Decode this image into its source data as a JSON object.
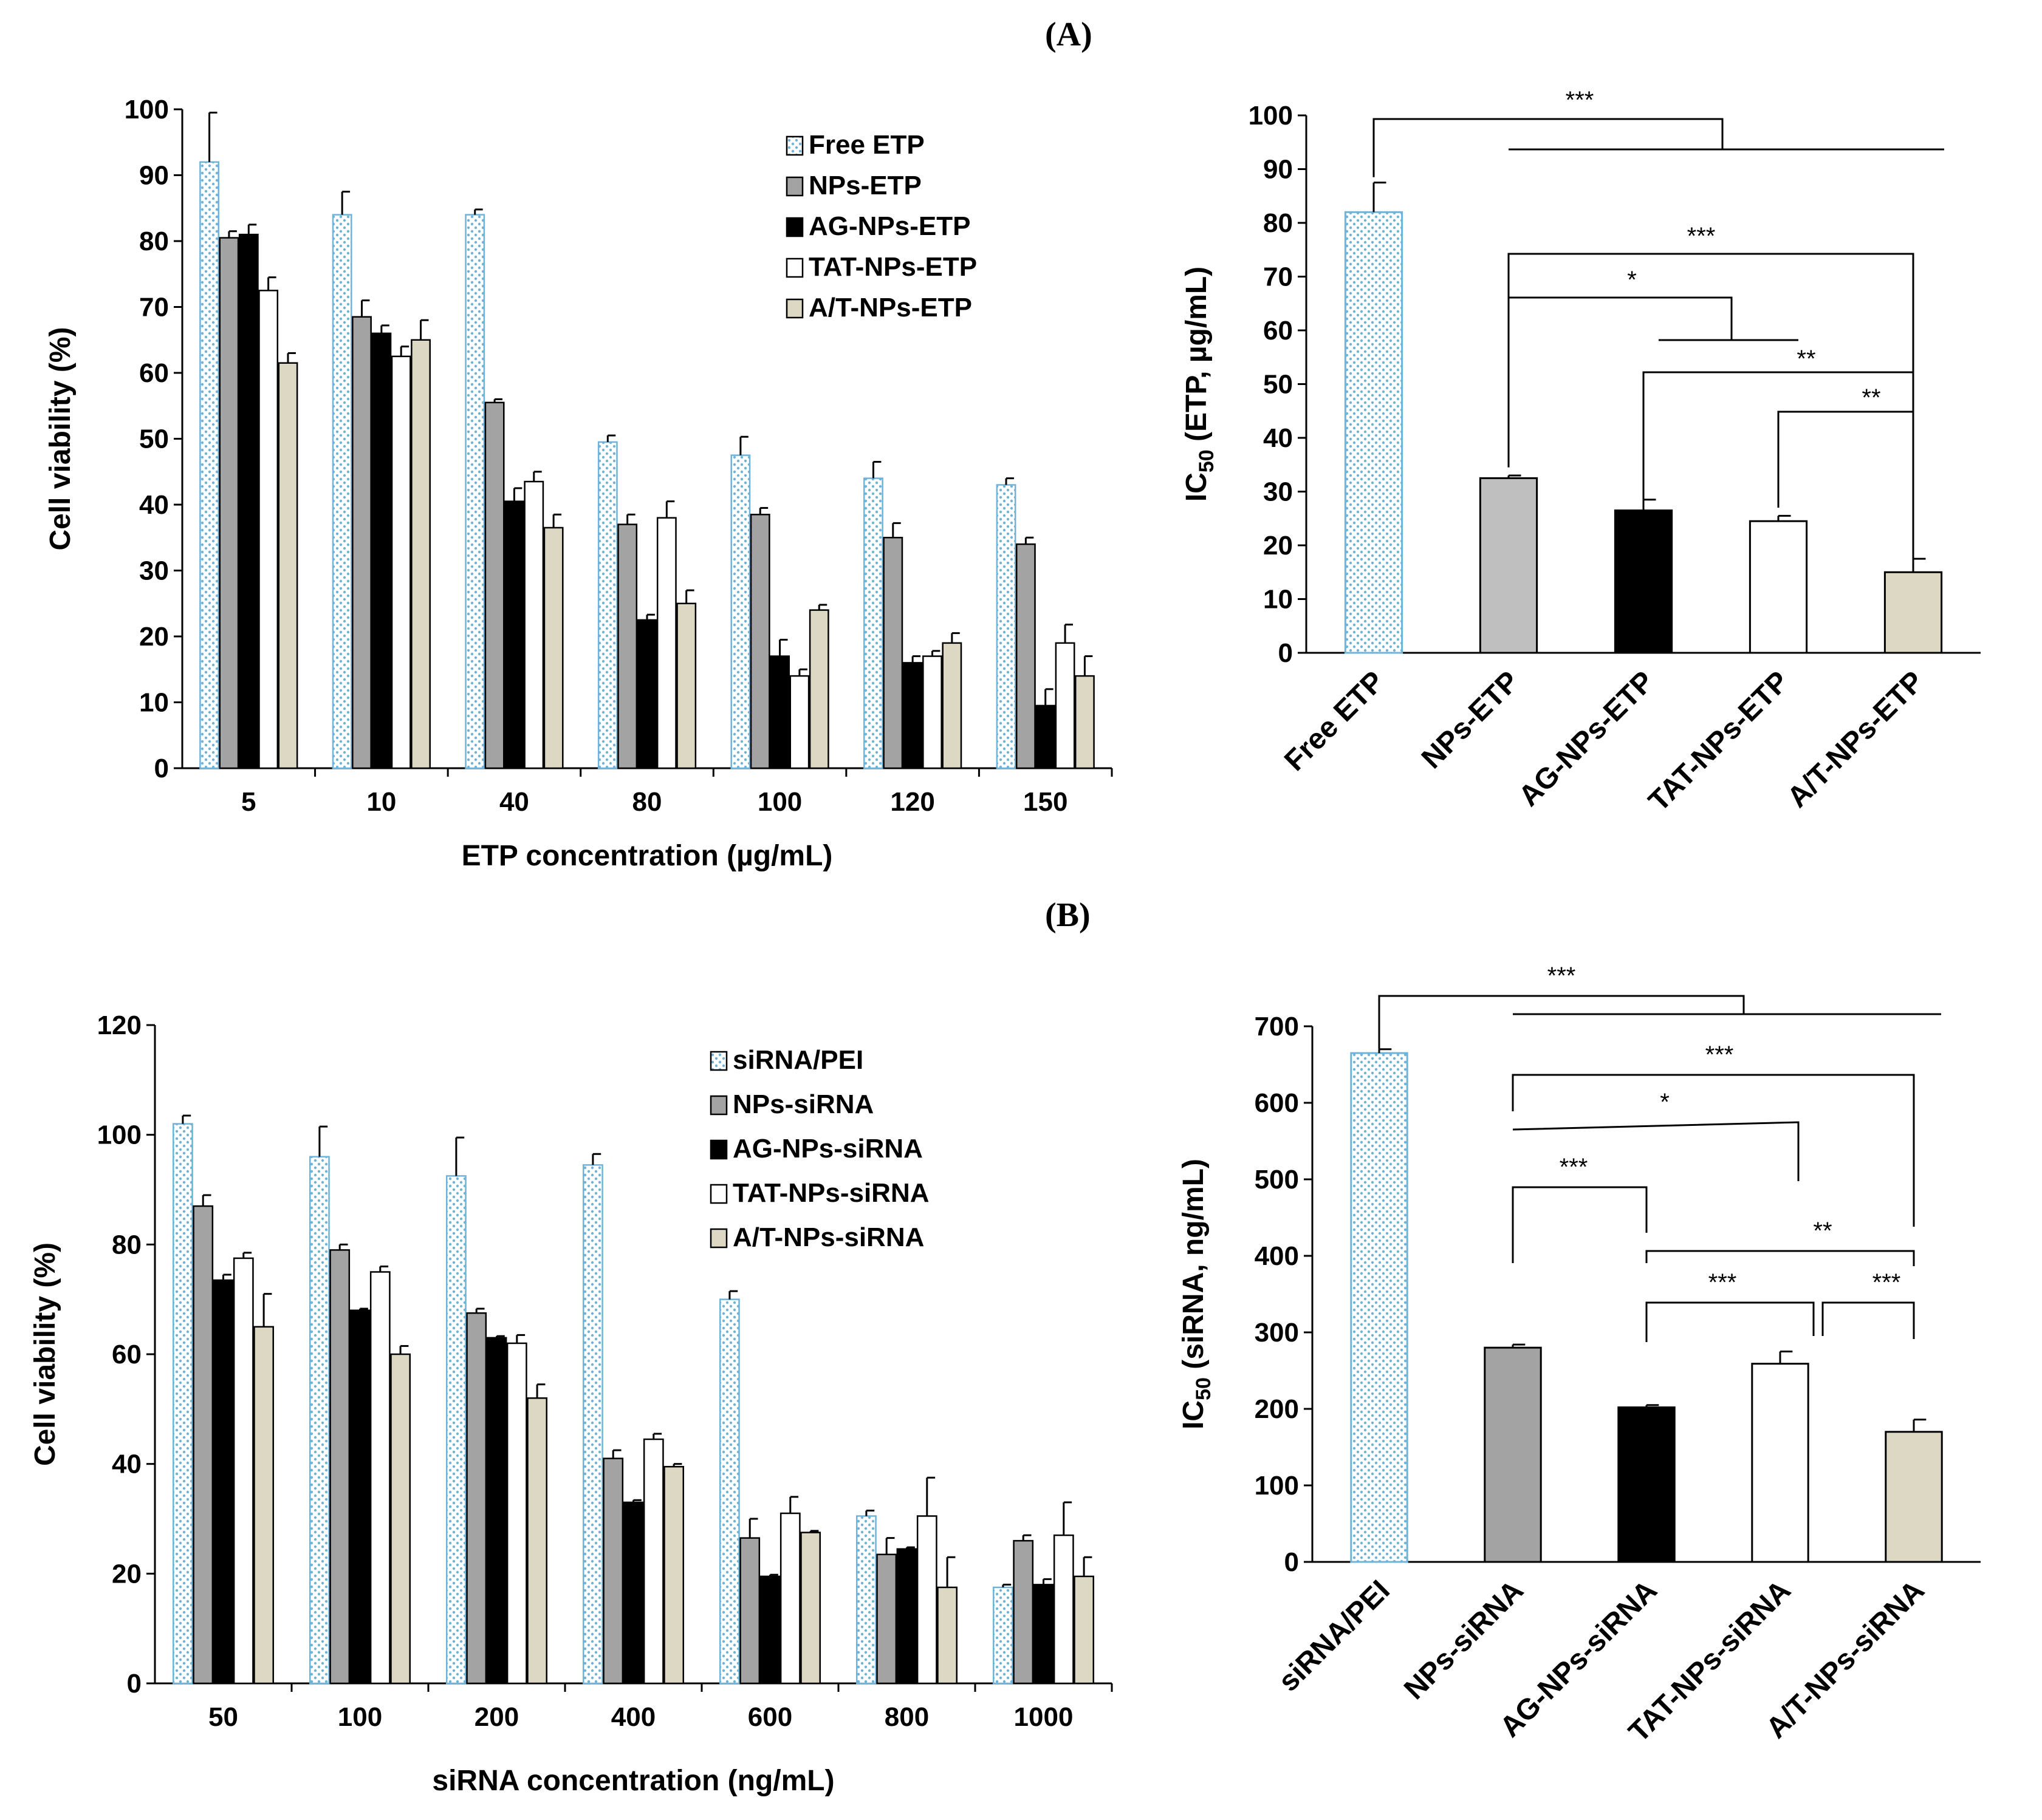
{
  "figure": {
    "label_a": "(A)",
    "label_b": "(B)"
  },
  "colors": {
    "free_fill": "#ffffff",
    "free_dot": "#6fb3d9",
    "gray": "#a3a3a3",
    "gray_light": "#bfbfbf",
    "black": "#000000",
    "white": "#ffffff",
    "beige": "#ddd8c4",
    "axis": "#000000"
  },
  "chart_data": [
    {
      "id": "A_viability",
      "type": "bar",
      "title": "",
      "xlabel": "ETP concentration (µg/mL)",
      "ylabel": "Cell viability (%)",
      "ylim": [
        0,
        100
      ],
      "yticks": [
        0,
        10,
        20,
        30,
        40,
        50,
        60,
        70,
        80,
        90,
        100
      ],
      "categories": [
        "5",
        "10",
        "40",
        "80",
        "100",
        "120",
        "150"
      ],
      "legend_position": "top-right",
      "series": [
        {
          "name": "Free ETP",
          "style": "dotted",
          "values": [
            92,
            84,
            84,
            49.5,
            47.5,
            44,
            43
          ],
          "errors": [
            7.5,
            3.5,
            0.8,
            1,
            2.8,
            2.5,
            1
          ]
        },
        {
          "name": "NPs-ETP",
          "style": "gray",
          "values": [
            80.5,
            68.5,
            55.5,
            37,
            38.5,
            35,
            34
          ],
          "errors": [
            1,
            2.5,
            0.5,
            1.5,
            1,
            2.2,
            1
          ]
        },
        {
          "name": "AG-NPs-ETP",
          "style": "black",
          "values": [
            81,
            66,
            40.5,
            22.5,
            17,
            16,
            9.5
          ],
          "errors": [
            1.5,
            1.2,
            2,
            0.8,
            2.5,
            1,
            2.5
          ]
        },
        {
          "name": "TAT-NPs-ETP",
          "style": "white",
          "values": [
            72.5,
            62.5,
            43.5,
            38,
            14,
            17,
            19
          ],
          "errors": [
            2,
            1.5,
            1.5,
            2.5,
            1,
            0.8,
            2.8
          ]
        },
        {
          "name": "A/T-NPs-ETP",
          "style": "beige",
          "values": [
            61.5,
            65,
            36.5,
            25,
            24,
            19,
            14
          ],
          "errors": [
            1.5,
            3,
            2,
            2,
            0.8,
            1.5,
            3
          ]
        }
      ]
    },
    {
      "id": "A_ic50",
      "type": "bar",
      "title": "",
      "xlabel": "",
      "ylabel_main": "IC",
      "ylabel_sub": "50",
      "ylabel_rest": " (ETP, µg/mL)",
      "ylim": [
        0,
        100
      ],
      "yticks": [
        0,
        10,
        20,
        30,
        40,
        50,
        60,
        70,
        80,
        90,
        100
      ],
      "categories": [
        "Free ETP",
        "NPs-ETP",
        "AG-NPs-ETP",
        "TAT-NPs-ETP",
        "A/T-NPs-ETP"
      ],
      "styles": [
        "dotted",
        "gray_light",
        "black",
        "white",
        "beige"
      ],
      "values": [
        82,
        32.5,
        26.5,
        24.5,
        15
      ],
      "errors": [
        5.5,
        0.5,
        2,
        1,
        2.5
      ],
      "annotations": [
        "***",
        "***",
        "*",
        "**",
        "**"
      ]
    },
    {
      "id": "B_viability",
      "type": "bar",
      "title": "",
      "xlabel": "siRNA concentration (ng/mL)",
      "ylabel": "Cell viability (%)",
      "ylim": [
        0,
        120
      ],
      "yticks": [
        0,
        20,
        40,
        60,
        80,
        100,
        120
      ],
      "categories": [
        "50",
        "100",
        "200",
        "400",
        "600",
        "800",
        "1000"
      ],
      "legend_position": "top-right",
      "series": [
        {
          "name": "siRNA/PEI",
          "style": "dotted",
          "values": [
            102,
            96,
            92.5,
            94.5,
            70,
            30.5,
            17.5
          ],
          "errors": [
            1.5,
            5.5,
            7,
            2,
            1.5,
            1,
            0.5
          ]
        },
        {
          "name": "NPs-siRNA",
          "style": "gray",
          "values": [
            87,
            79,
            67.5,
            41,
            26.5,
            23.5,
            26
          ],
          "errors": [
            2,
            1,
            0.8,
            1.5,
            3.5,
            3,
            1
          ]
        },
        {
          "name": "AG-NPs-siRNA",
          "style": "black",
          "values": [
            73.5,
            68,
            63,
            33,
            19.5,
            24.5,
            18
          ],
          "errors": [
            1,
            0.3,
            0.3,
            0.4,
            0.3,
            0.3,
            1
          ]
        },
        {
          "name": "TAT-NPs-siRNA",
          "style": "white",
          "values": [
            77.5,
            75,
            62,
            44.5,
            31,
            30.5,
            27
          ],
          "errors": [
            1,
            1,
            1.5,
            1,
            3,
            7,
            6
          ]
        },
        {
          "name": "A/T-NPs-siRNA",
          "style": "beige",
          "values": [
            65,
            60,
            52,
            39.5,
            27.5,
            17.5,
            19.5
          ],
          "errors": [
            6,
            1.5,
            2.5,
            0.5,
            0.3,
            5.5,
            3.5
          ]
        }
      ]
    },
    {
      "id": "B_ic50",
      "type": "bar",
      "title": "",
      "xlabel": "",
      "ylabel_main": "IC",
      "ylabel_sub": "50",
      "ylabel_rest": " (siRNA, ng/mL)",
      "ylim": [
        0,
        700
      ],
      "yticks": [
        0,
        100,
        200,
        300,
        400,
        500,
        600,
        700
      ],
      "categories": [
        "siRNA/PEI",
        "NPs-siRNA",
        "AG-NPs-siRNA",
        "TAT-NPs-siRNA",
        "A/T-NPs-siRNA"
      ],
      "styles": [
        "dotted",
        "gray",
        "black",
        "white",
        "beige"
      ],
      "values": [
        665,
        280,
        202,
        259,
        170
      ],
      "errors": [
        5,
        4,
        3,
        16,
        16
      ],
      "annotations": [
        "***",
        "***",
        "*",
        "***",
        "**",
        "***",
        "***"
      ]
    }
  ]
}
